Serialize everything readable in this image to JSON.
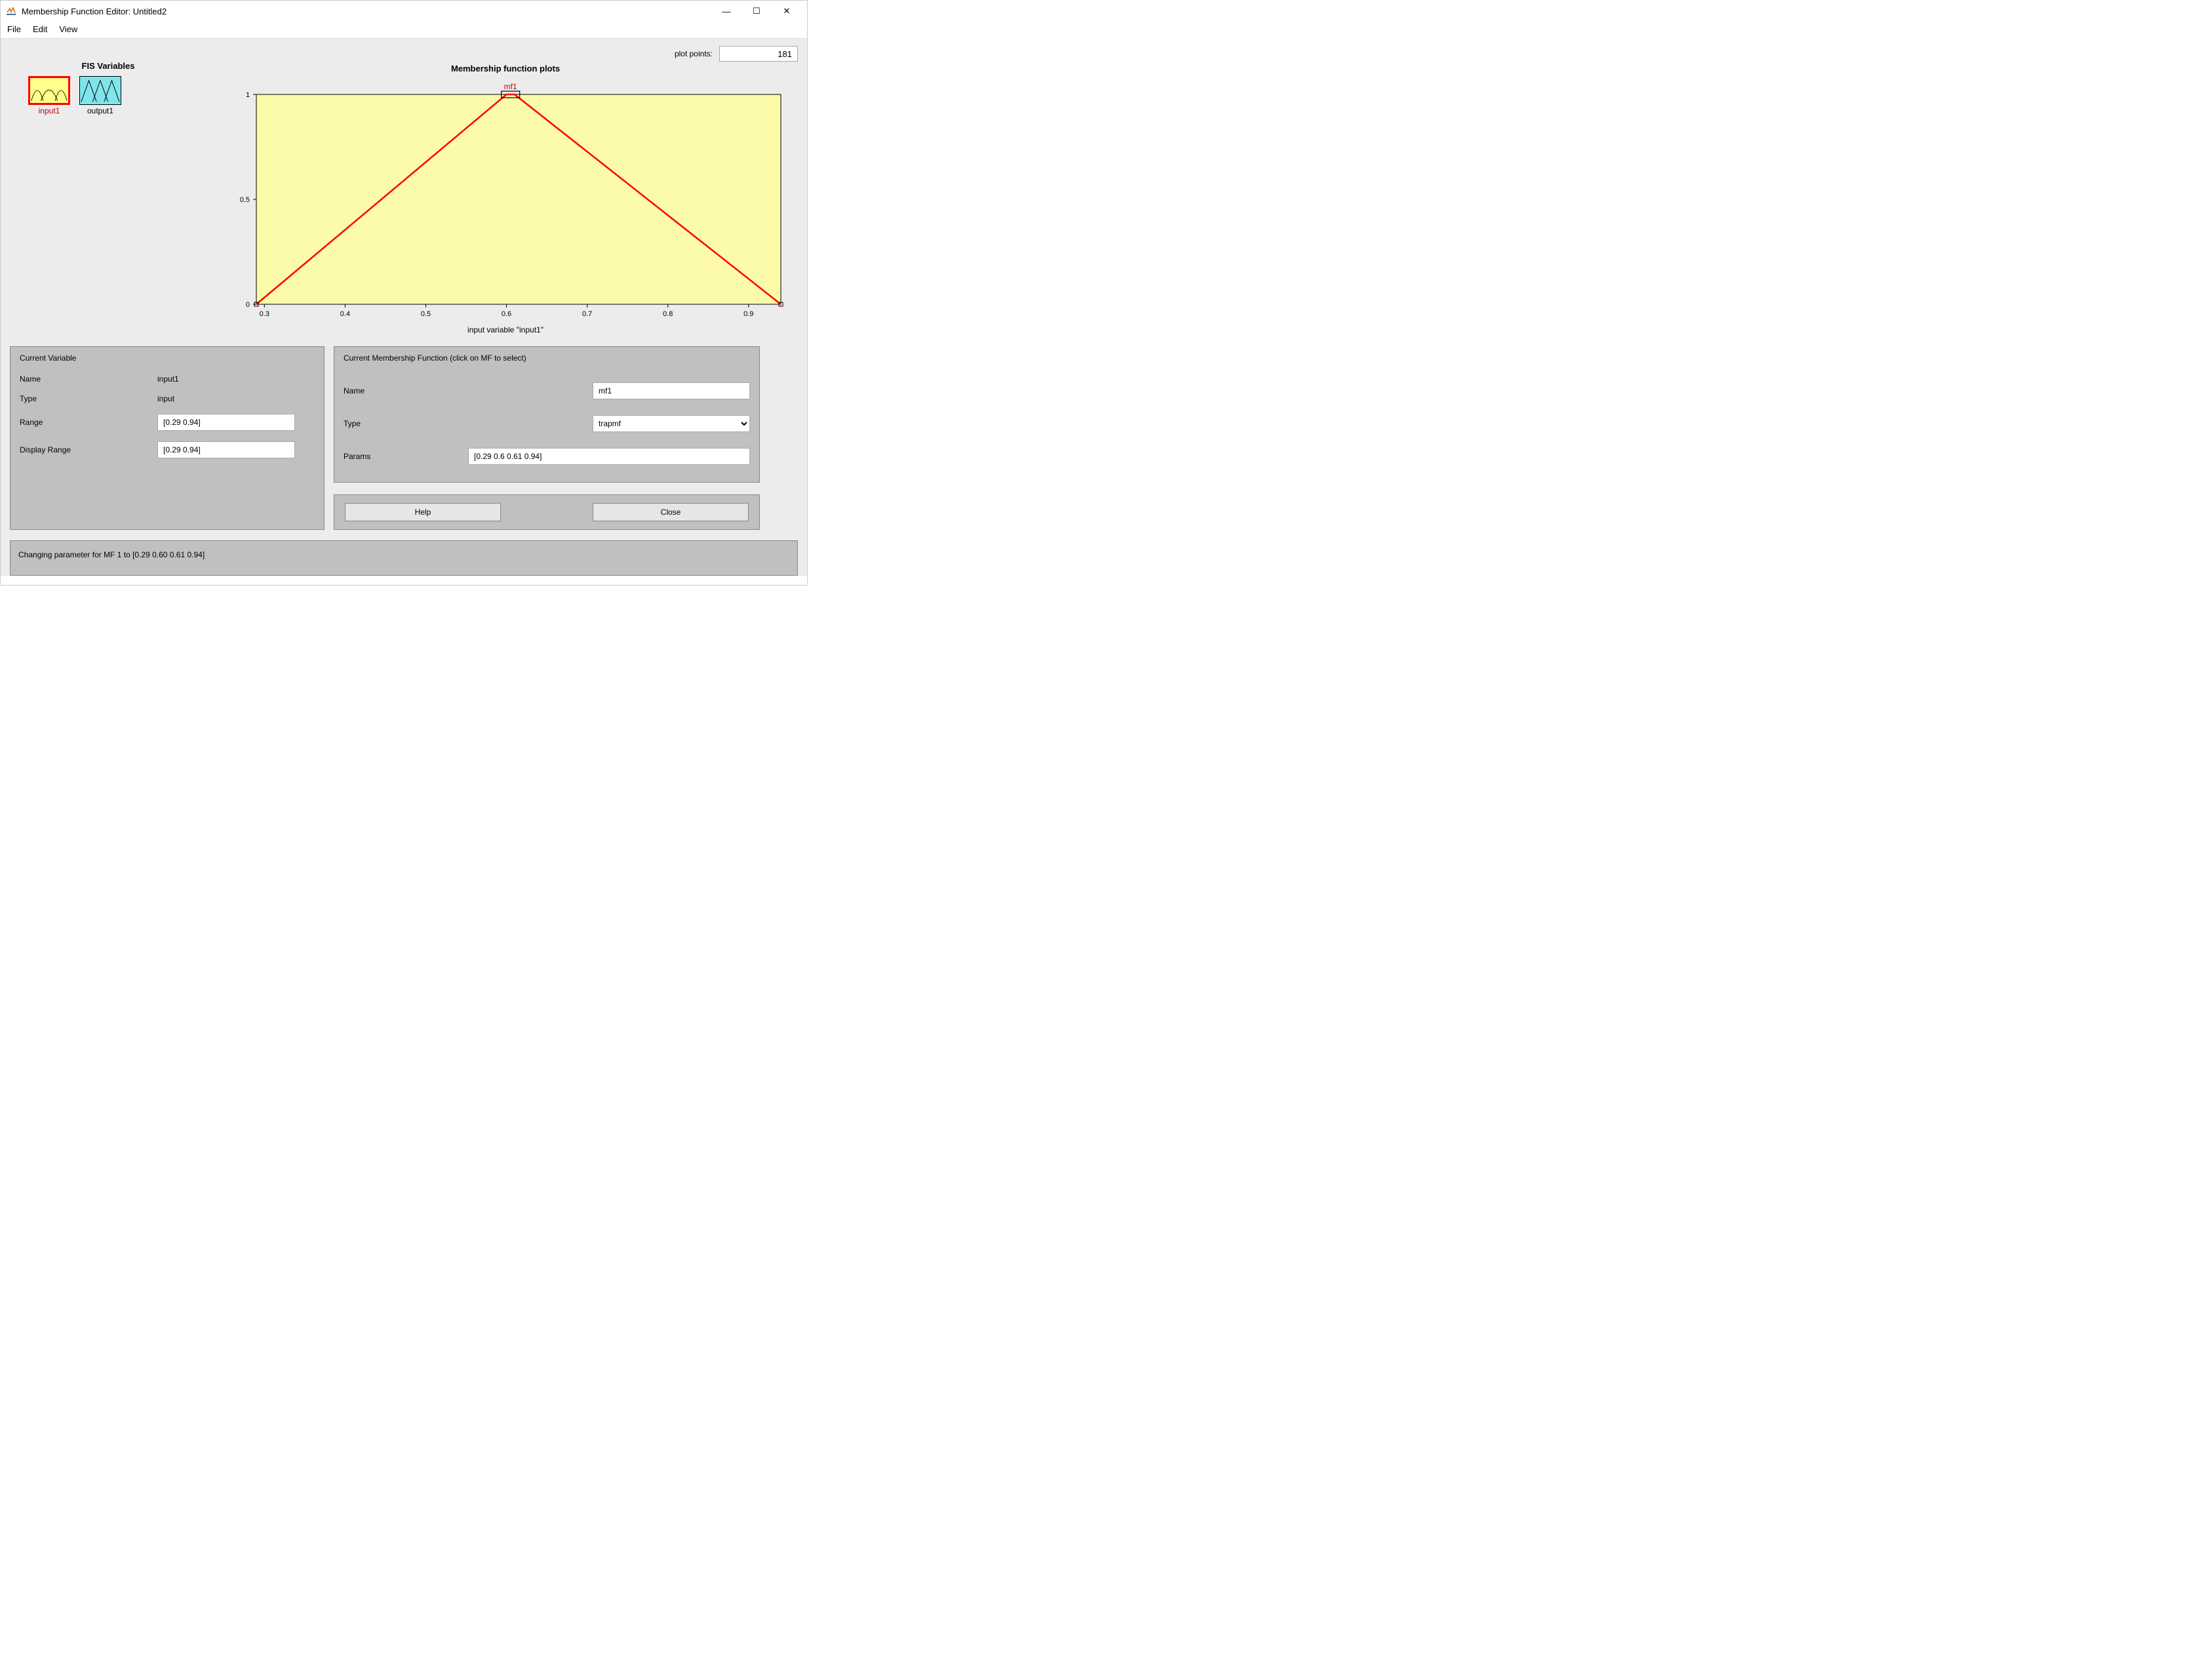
{
  "window": {
    "title": "Membership Function Editor: Untitled2",
    "minimize_glyph": "—",
    "maximize_glyph": "☐",
    "close_glyph": "✕"
  },
  "menu": {
    "file": "File",
    "edit": "Edit",
    "view": "View"
  },
  "plot_points": {
    "label": "plot points:",
    "value": "181"
  },
  "fis": {
    "section_title": "FIS Variables",
    "input": {
      "label": "input1",
      "selected": true,
      "bg": "#ffff8a",
      "border": "#ff0000",
      "stroke": "#000000"
    },
    "output": {
      "label": "output1",
      "selected": false,
      "bg": "#7fe5ea",
      "border": "#000000",
      "stroke": "#000000"
    }
  },
  "chart": {
    "title": "Membership function plots",
    "mf_label": "mf1",
    "mf_label_color": "#cc0000",
    "xlabel": "input variable \"input1\"",
    "type": "line",
    "background_color": "#fbfbaa",
    "axis_color": "#000000",
    "line_color": "#ff0000",
    "line_width": 2.5,
    "xlim": [
      0.29,
      0.94
    ],
    "ylim": [
      0,
      1
    ],
    "xticks": [
      0.3,
      0.4,
      0.5,
      0.6,
      0.7,
      0.8,
      0.9
    ],
    "yticks": [
      0,
      0.5,
      1
    ],
    "xtick_labels": [
      "0.3",
      "0.4",
      "0.5",
      "0.6",
      "0.7",
      "0.8",
      "0.9"
    ],
    "ytick_labels": [
      "0",
      "0.5",
      "1"
    ],
    "mf_params": [
      0.29,
      0.6,
      0.61,
      0.94
    ],
    "handle_size": 6,
    "label_fontsize": 12,
    "tick_fontsize": 11
  },
  "current_variable": {
    "panel_title": "Current Variable",
    "name_label": "Name",
    "name_value": "input1",
    "type_label": "Type",
    "type_value": "input",
    "range_label": "Range",
    "range_value": "[0.29 0.94]",
    "display_range_label": "Display Range",
    "display_range_value": "[0.29 0.94]"
  },
  "current_mf": {
    "panel_title": "Current Membership Function (click on MF to select)",
    "name_label": "Name",
    "name_value": "mf1",
    "type_label": "Type",
    "type_value": "trapmf",
    "params_label": "Params",
    "params_value": "[0.29 0.6 0.61 0.94]"
  },
  "buttons": {
    "help": "Help",
    "close": "Close"
  },
  "status": "Changing parameter for MF 1 to  [0.29 0.60 0.61 0.94]",
  "colors": {
    "client_bg": "#ececec",
    "panel_bg": "#c0c0c0",
    "panel_border": "#888888",
    "input_border": "#a9a9a9"
  }
}
